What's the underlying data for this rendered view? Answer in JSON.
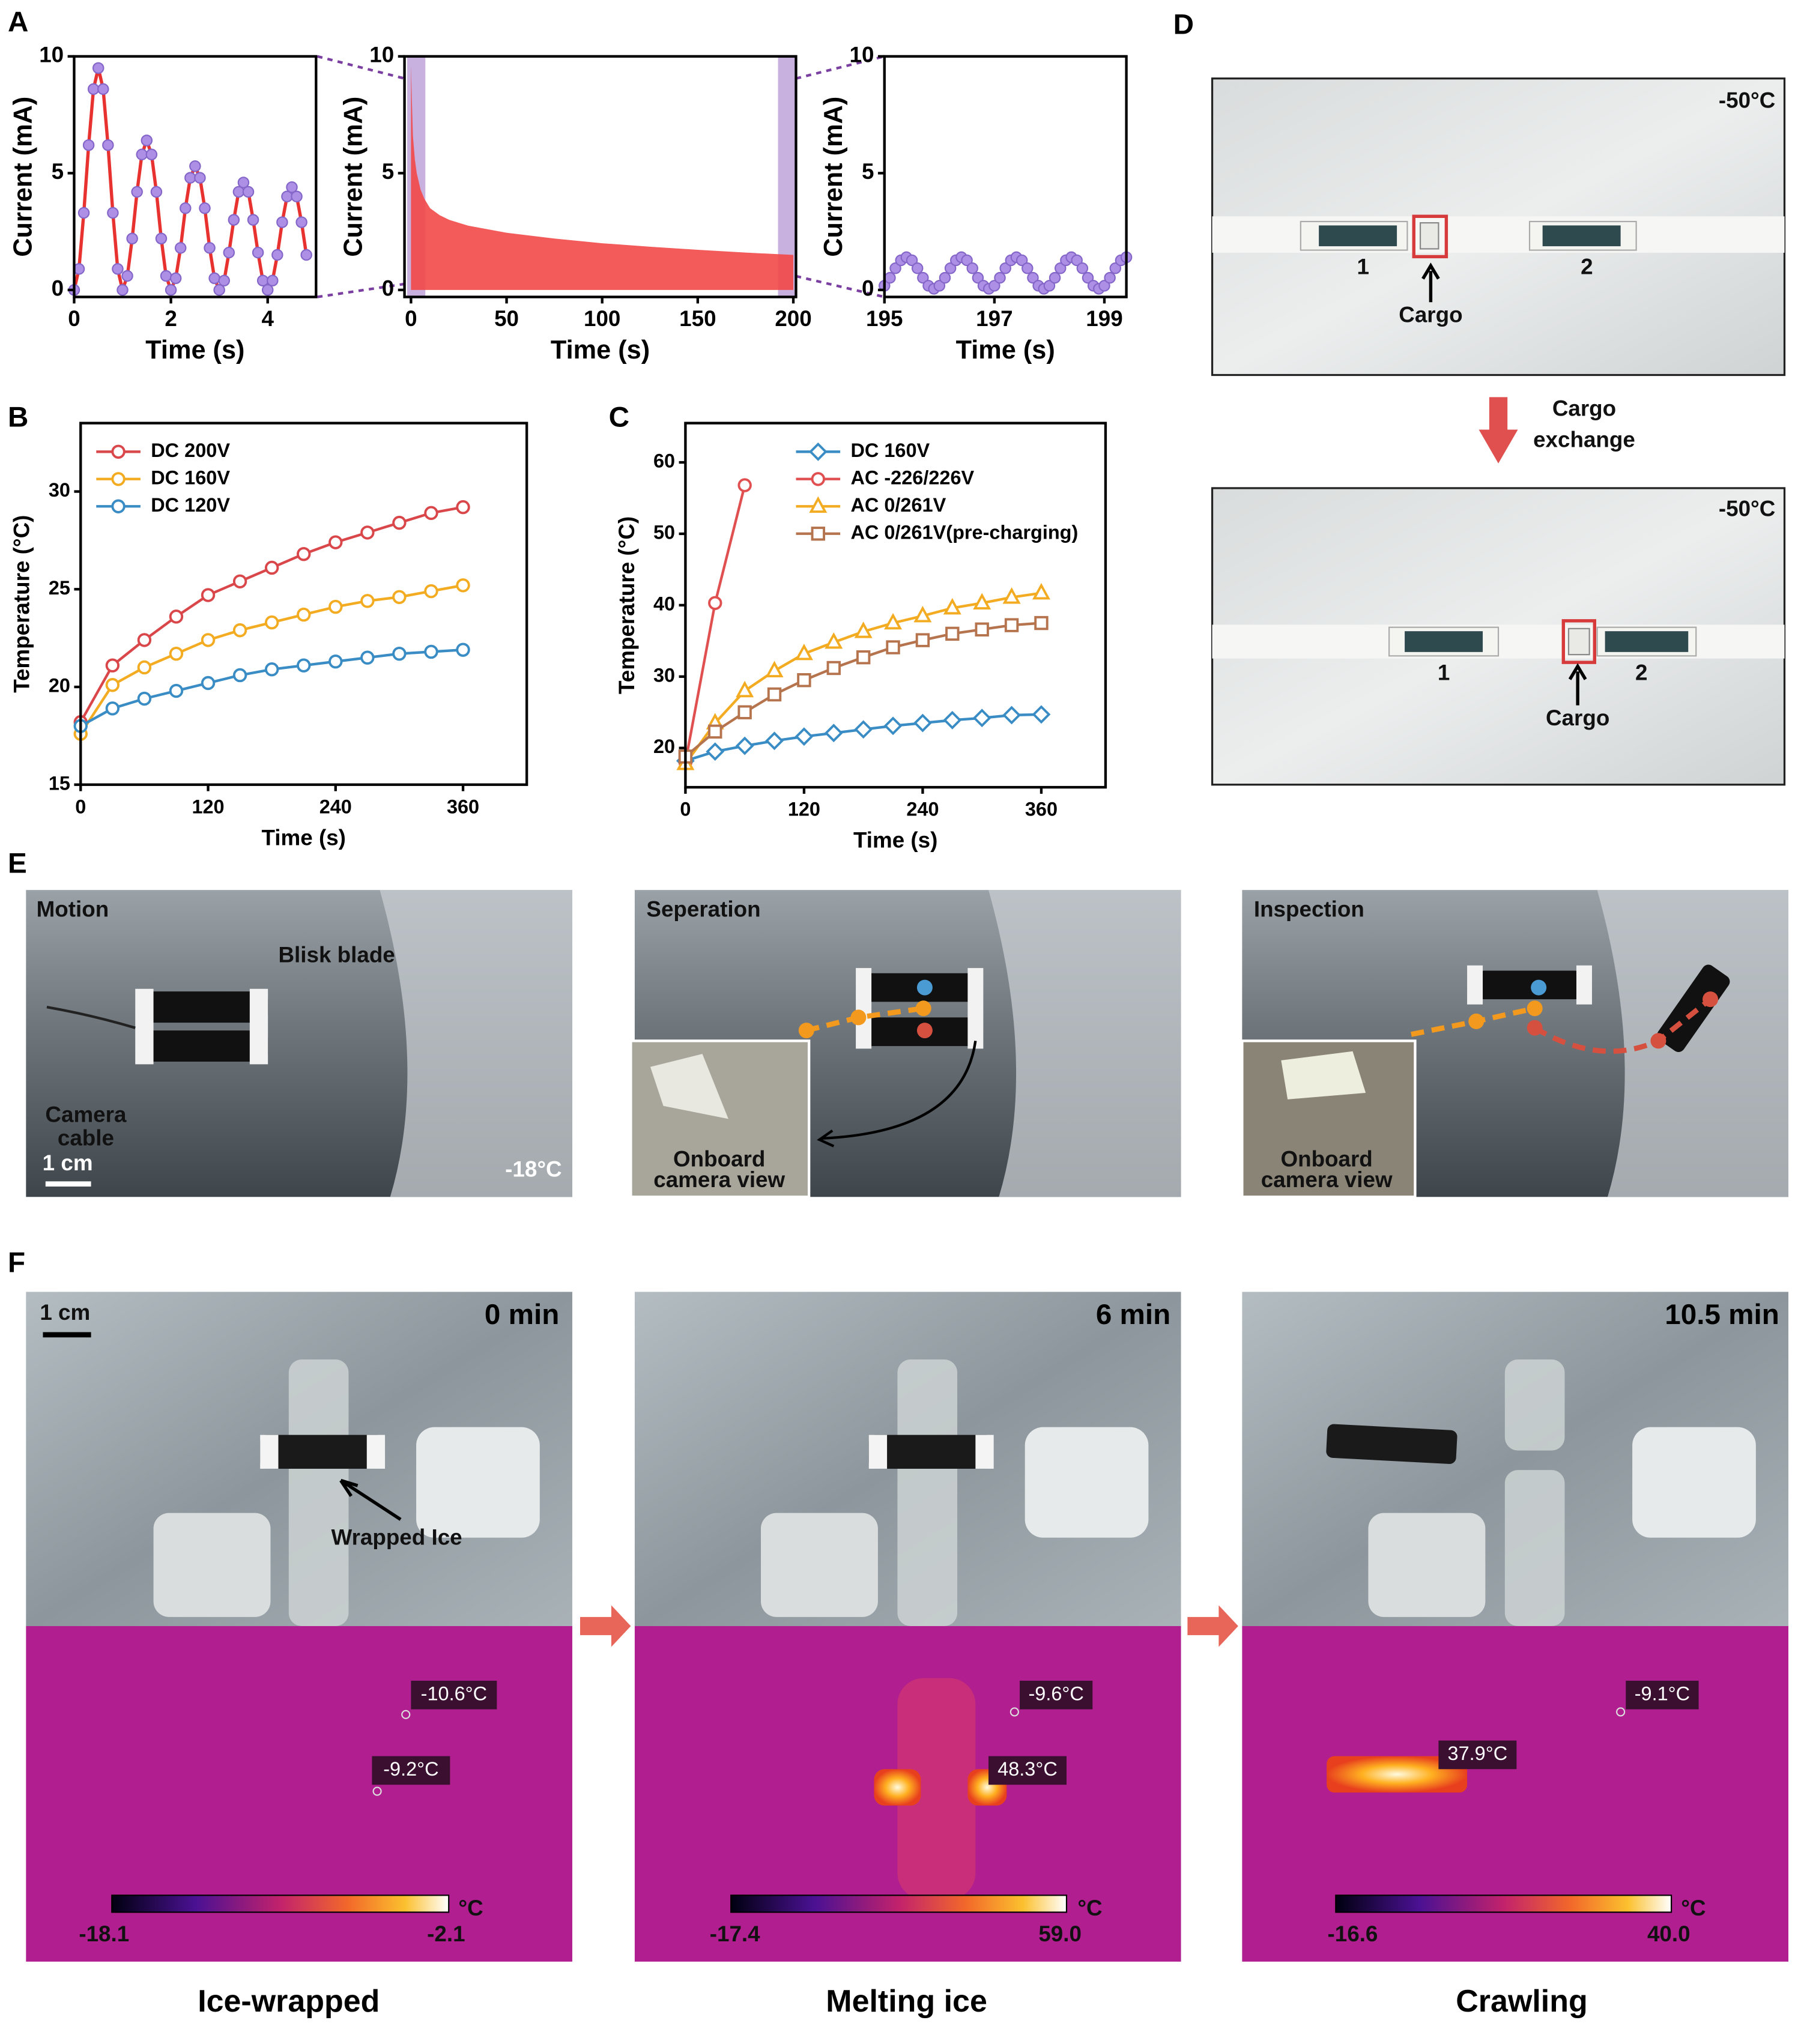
{
  "chart_data": [
    {
      "type": "line",
      "ylabel": "Current (mA)",
      "xlabel": "Time (s)",
      "x": [
        0,
        0.1,
        0.2,
        0.3,
        0.4,
        0.5,
        0.6,
        0.7,
        0.8,
        0.9,
        1,
        1.1,
        1.2,
        1.3,
        1.4,
        1.5,
        1.6,
        1.7,
        1.8,
        1.9,
        2,
        2.1,
        2.2,
        2.3,
        2.4,
        2.5,
        2.6,
        2.7,
        2.8,
        2.9,
        3,
        3.1,
        3.2,
        3.3,
        3.4,
        3.5,
        3.6,
        3.7,
        3.8,
        3.9,
        4,
        4.1,
        4.2,
        4.3,
        4.4,
        4.5,
        4.6,
        4.7,
        4.8
      ],
      "series": [
        {
          "values": [
            0,
            0.9,
            3.3,
            6.2,
            8.6,
            9.5,
            8.6,
            6.2,
            3.3,
            0.9,
            0,
            0.6,
            2.2,
            4.2,
            5.8,
            6.4,
            5.8,
            4.2,
            2.2,
            0.6,
            0,
            0.5,
            1.8,
            3.5,
            4.8,
            5.3,
            4.8,
            3.5,
            1.8,
            0.5,
            0,
            0.4,
            1.6,
            3.0,
            4.2,
            4.6,
            4.2,
            3.0,
            1.6,
            0.4,
            0,
            0.4,
            1.5,
            2.9,
            4.0,
            4.4,
            4.0,
            2.9,
            1.5
          ],
          "color": "#e8322f",
          "marker": "circle",
          "marker_color": "#ad8fe6",
          "marker_edge": "#8466c9"
        }
      ],
      "xlim": [
        0,
        5
      ],
      "ylim": [
        -0.3,
        10
      ],
      "xticks": [
        0,
        2,
        4
      ],
      "yticks": [
        0,
        5,
        10
      ]
    },
    {
      "type": "area",
      "ylabel": "Current (mA)",
      "xlabel": "Time (s)",
      "x": [
        0,
        0.5,
        1,
        2,
        3,
        5,
        7,
        10,
        15,
        20,
        30,
        40,
        50,
        75,
        100,
        125,
        150,
        175,
        200
      ],
      "series": [
        {
          "values": [
            9.6,
            8.0,
            6.6,
            5.6,
            5.0,
            4.3,
            3.9,
            3.5,
            3.2,
            3.0,
            2.75,
            2.6,
            2.45,
            2.2,
            2.0,
            1.85,
            1.72,
            1.6,
            1.5
          ],
          "color": "#f24848"
        }
      ],
      "highlights": [
        [
          -2,
          7.5
        ],
        [
          192,
          201.4
        ]
      ],
      "highlight_color": "#9b70c4",
      "xlim": [
        -3.4,
        201.4
      ],
      "ylim": [
        -0.3,
        10
      ],
      "xticks": [
        0,
        50,
        100,
        150,
        200
      ],
      "yticks": [
        0,
        5,
        10
      ]
    },
    {
      "type": "line",
      "ylabel": "Current (mA)",
      "xlabel": "Time (s)",
      "x": [
        195,
        195.1,
        195.2,
        195.3,
        195.4,
        195.5,
        195.6,
        195.7,
        195.8,
        195.9,
        196,
        196.1,
        196.2,
        196.3,
        196.4,
        196.5,
        196.6,
        196.7,
        196.8,
        196.9,
        197,
        197.1,
        197.2,
        197.3,
        197.4,
        197.5,
        197.6,
        197.7,
        197.8,
        197.9,
        198,
        198.1,
        198.2,
        198.3,
        198.4,
        198.5,
        198.6,
        198.7,
        198.8,
        198.9,
        199,
        199.1,
        199.2,
        199.3,
        199.4
      ],
      "series": [
        {
          "values": [
            0.18,
            0.52,
            0.93,
            1.27,
            1.4,
            1.27,
            0.93,
            0.52,
            0.18,
            0.05,
            0.18,
            0.52,
            0.93,
            1.27,
            1.4,
            1.27,
            0.93,
            0.52,
            0.18,
            0.05,
            0.18,
            0.52,
            0.93,
            1.27,
            1.4,
            1.27,
            0.93,
            0.52,
            0.18,
            0.05,
            0.18,
            0.52,
            0.93,
            1.27,
            1.4,
            1.27,
            0.93,
            0.52,
            0.18,
            0.05,
            0.18,
            0.52,
            0.93,
            1.27,
            1.4
          ],
          "color": "#e8322f",
          "marker": "circle",
          "marker_color": "#ad8fe6",
          "marker_edge": "#8466c9"
        }
      ],
      "xlim": [
        195,
        199.4
      ],
      "ylim": [
        -0.3,
        10
      ],
      "xticks": [
        195,
        197,
        199
      ],
      "yticks": [
        0,
        5,
        10
      ]
    },
    {
      "type": "line",
      "ylabel": "Temperature (°C)",
      "xlabel": "Time (s)",
      "x": [
        0,
        30,
        60,
        90,
        120,
        150,
        180,
        210,
        240,
        270,
        300,
        330,
        360
      ],
      "series": [
        {
          "name": "DC 200V",
          "color": "#d9474a",
          "marker": "circle",
          "marker_color": "#ffffff",
          "values": [
            18.2,
            21.1,
            22.4,
            23.6,
            24.7,
            25.4,
            26.1,
            26.8,
            27.4,
            27.9,
            28.4,
            28.9,
            29.2
          ]
        },
        {
          "name": "DC 160V",
          "color": "#f3ac22",
          "marker": "circle",
          "marker_color": "#ffffff",
          "values": [
            17.6,
            20.1,
            21.0,
            21.7,
            22.4,
            22.9,
            23.3,
            23.7,
            24.1,
            24.4,
            24.6,
            24.9,
            25.2
          ]
        },
        {
          "name": "DC 120V",
          "color": "#3a8cc4",
          "marker": "circle",
          "marker_color": "#ffffff",
          "values": [
            18.0,
            18.9,
            19.4,
            19.8,
            20.2,
            20.6,
            20.9,
            21.1,
            21.3,
            21.5,
            21.7,
            21.8,
            21.9
          ]
        }
      ],
      "legend": "upper left",
      "xlim": [
        0,
        420
      ],
      "ylim": [
        15,
        33.5
      ],
      "xticks": [
        0,
        120,
        240,
        360
      ],
      "yticks": [
        15,
        20,
        25,
        30
      ]
    },
    {
      "type": "line",
      "ylabel": "Temperature (°C)",
      "xlabel": "Time (s)",
      "x": [
        0,
        30,
        60,
        90,
        120,
        150,
        180,
        210,
        240,
        270,
        300,
        330,
        360
      ],
      "series": [
        {
          "name": "DC 160V",
          "color": "#3a8cc4",
          "marker": "diamond",
          "marker_color": "#ffffff",
          "values": [
            18.2,
            19.5,
            20.3,
            21.0,
            21.6,
            22.1,
            22.6,
            23.1,
            23.5,
            23.9,
            24.2,
            24.6,
            24.7
          ]
        },
        {
          "name": "AC -226/226V",
          "color": "#e05050",
          "marker": "circle",
          "marker_color": "#ffffff",
          "x": [
            0,
            30,
            60
          ],
          "values": [
            18.0,
            40.3,
            56.8
          ]
        },
        {
          "name": "AC 0/261V",
          "color": "#f3ac22",
          "marker": "triangle",
          "marker_color": "#ffffff",
          "values": [
            17.8,
            23.5,
            28.0,
            30.8,
            33.2,
            34.8,
            36.3,
            37.5,
            38.5,
            39.6,
            40.3,
            41.1,
            41.7
          ]
        },
        {
          "name": "AC 0/261V(pre-charging)",
          "color": "#b5744d",
          "marker": "square",
          "marker_color": "#ffffff",
          "values": [
            18.8,
            22.3,
            25.0,
            27.5,
            29.5,
            31.2,
            32.7,
            34.1,
            35.1,
            36.0,
            36.6,
            37.2,
            37.5
          ]
        }
      ],
      "legend": "upper right",
      "xlim": [
        0,
        425
      ],
      "ylim": [
        14.5,
        65.5
      ],
      "xticks": [
        0,
        120,
        240,
        360
      ],
      "yticks": [
        20,
        30,
        40,
        50,
        60
      ]
    }
  ],
  "panel_labels": [
    "A",
    "B",
    "C",
    "D",
    "E",
    "F"
  ],
  "panel_d": {
    "photos": [
      {
        "temperature": "-50°C",
        "robot_1": "1",
        "robot_2": "2",
        "cargo": "Cargo"
      },
      {
        "temperature": "-50°C",
        "robot_1": "1",
        "robot_2": "2",
        "cargo": "Cargo"
      }
    ],
    "transition": [
      "Cargo",
      "exchange"
    ]
  },
  "panel_e": {
    "photos": [
      {
        "label": "Motion",
        "blade": "Blisk blade",
        "cable": [
          "Camera",
          "cable"
        ],
        "scale": "1 cm",
        "temperature": "-18°C"
      },
      {
        "label": "Seperation",
        "inset": [
          "Onboard",
          "camera view"
        ]
      },
      {
        "label": "Inspection",
        "inset": [
          "Onboard",
          "camera view"
        ]
      }
    ]
  },
  "panel_f": {
    "scale": "1 cm",
    "columns": [
      {
        "time": "0 min",
        "annotation": "Wrapped Ice",
        "readings": [
          "-10.6°C",
          "-9.2°C"
        ],
        "colorbar": [
          "-18.1",
          "-2.1"
        ],
        "unit": "°C",
        "caption": "Ice-wrapped"
      },
      {
        "time": "6 min",
        "readings": [
          "-9.6°C",
          "48.3°C"
        ],
        "colorbar": [
          "-17.4",
          "59.0"
        ],
        "unit": "°C",
        "caption": "Melting ice"
      },
      {
        "time": "10.5 min",
        "readings": [
          "-9.1°C",
          "37.9°C"
        ],
        "colorbar": [
          "-16.6",
          "40.0"
        ],
        "unit": "°C",
        "caption": "Crawling"
      }
    ]
  }
}
